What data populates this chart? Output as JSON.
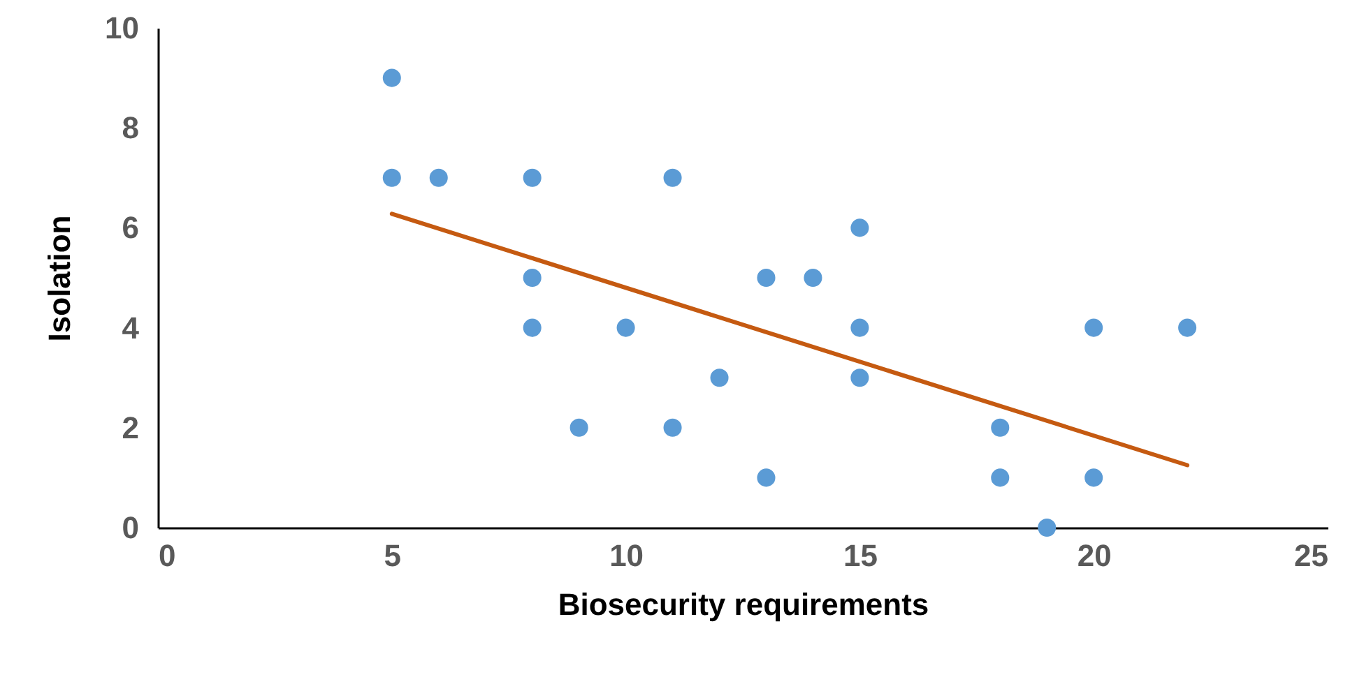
{
  "chart_data": {
    "type": "scatter",
    "xlabel": "Biosecurity requirements",
    "ylabel": "Isolation",
    "xlim": [
      0,
      25
    ],
    "ylim": [
      0,
      10
    ],
    "xticks": [
      0,
      5,
      10,
      15,
      20,
      25
    ],
    "yticks": [
      0,
      2,
      4,
      6,
      8,
      10
    ],
    "grid": false,
    "series": [
      {
        "marker": "circle",
        "color": "#5b9bd5",
        "x": [
          5,
          5,
          6,
          8,
          11,
          8,
          8,
          10,
          9,
          11,
          12,
          13,
          13,
          14,
          15,
          15,
          15,
          18,
          18,
          19,
          20,
          20,
          22
        ],
        "values": [
          9,
          7,
          7,
          7,
          7,
          5,
          4,
          4,
          2,
          2,
          3,
          5,
          1,
          5,
          6,
          4,
          3,
          2,
          1,
          0,
          4,
          1,
          4
        ]
      },
      {
        "type": "line",
        "color": "#c55a11",
        "line_style": "solid",
        "x": [
          5,
          22
        ],
        "values": [
          6.28,
          1.25
        ]
      }
    ]
  }
}
